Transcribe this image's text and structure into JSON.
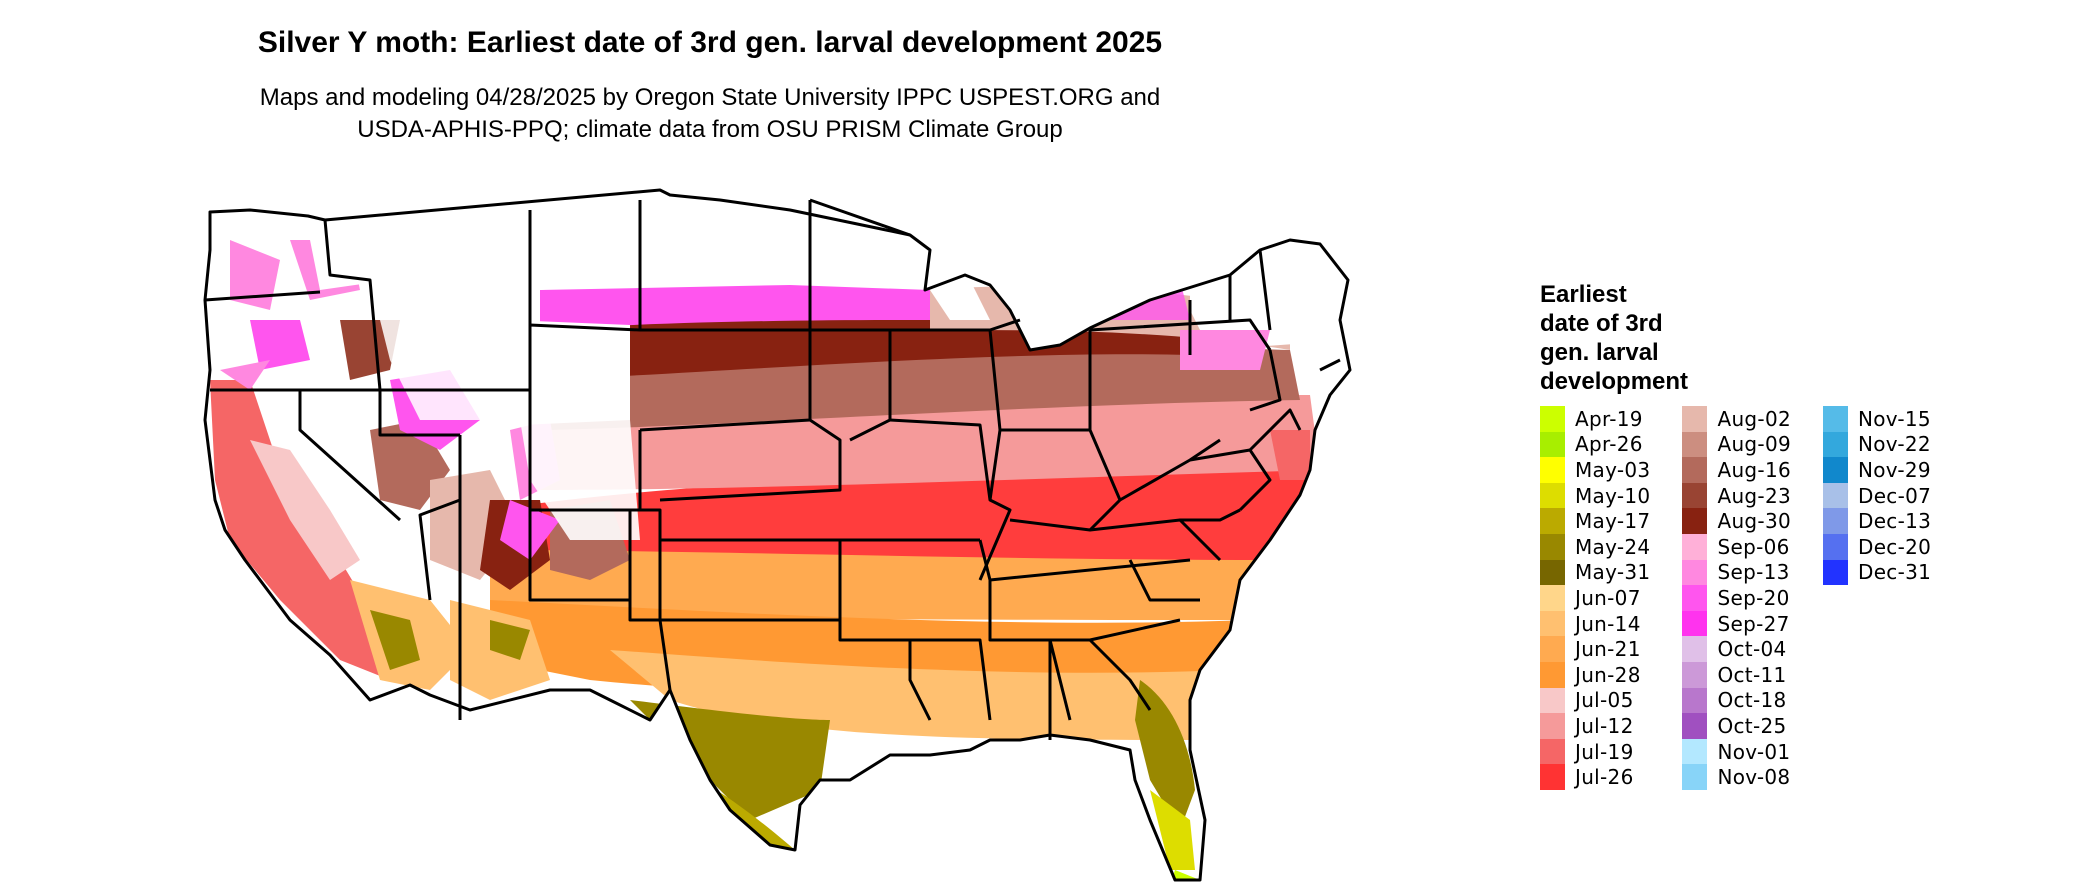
{
  "title": "Silver Y moth: Earliest date of 3rd gen. larval development 2025",
  "subtitle_line1": "Maps and modeling 04/28/2025 by Oregon State University IPPC USPEST.ORG and",
  "subtitle_line2": "USDA-APHIS-PPQ; climate data from OSU PRISM Climate Group",
  "legend": {
    "title_lines": [
      "Earliest",
      "date of 3rd",
      "gen. larval",
      "development"
    ],
    "columns": [
      [
        {
          "label": "Apr-19",
          "color": "#CCFF00"
        },
        {
          "label": "Apr-26",
          "color": "#A8EE00"
        },
        {
          "label": "May-03",
          "color": "#FFFF00"
        },
        {
          "label": "May-10",
          "color": "#DDDD00"
        },
        {
          "label": "May-17",
          "color": "#BBAA00"
        },
        {
          "label": "May-24",
          "color": "#998800"
        },
        {
          "label": "May-31",
          "color": "#776600"
        },
        {
          "label": "Jun-07",
          "color": "#FFD68A"
        },
        {
          "label": "Jun-14",
          "color": "#FFC070"
        },
        {
          "label": "Jun-21",
          "color": "#FFAA50"
        },
        {
          "label": "Jun-28",
          "color": "#FF9933"
        },
        {
          "label": "Jul-05",
          "color": "#F8C8C8"
        },
        {
          "label": "Jul-12",
          "color": "#F59A9A"
        },
        {
          "label": "Jul-19",
          "color": "#F56666"
        },
        {
          "label": "Jul-26",
          "color": "#FF3333"
        }
      ],
      [
        {
          "label": "Aug-02",
          "color": "#E6B8AC"
        },
        {
          "label": "Aug-09",
          "color": "#CC8E80"
        },
        {
          "label": "Aug-16",
          "color": "#B36A5C"
        },
        {
          "label": "Aug-23",
          "color": "#994433"
        },
        {
          "label": "Aug-30",
          "color": "#882211"
        },
        {
          "label": "Sep-06",
          "color": "#FFB0D8"
        },
        {
          "label": "Sep-13",
          "color": "#FF88E0"
        },
        {
          "label": "Sep-20",
          "color": "#FF55EE"
        },
        {
          "label": "Sep-27",
          "color": "#FF33EE"
        },
        {
          "label": "Oct-04",
          "color": "#E0C0E8"
        },
        {
          "label": "Oct-11",
          "color": "#CC99D8"
        },
        {
          "label": "Oct-18",
          "color": "#B877CC"
        },
        {
          "label": "Oct-25",
          "color": "#A050C0"
        },
        {
          "label": "Nov-01",
          "color": "#B3E8FF"
        },
        {
          "label": "Nov-08",
          "color": "#88D4F8"
        }
      ],
      [
        {
          "label": "Nov-15",
          "color": "#55BBE8"
        },
        {
          "label": "Nov-22",
          "color": "#33A8DD"
        },
        {
          "label": "Nov-29",
          "color": "#1188CC"
        },
        {
          "label": "Dec-07",
          "color": "#A8C0E8"
        },
        {
          "label": "Dec-13",
          "color": "#7F99E8"
        },
        {
          "label": "Dec-20",
          "color": "#5570F0"
        },
        {
          "label": "Dec-31",
          "color": "#2233FF"
        }
      ]
    ]
  }
}
